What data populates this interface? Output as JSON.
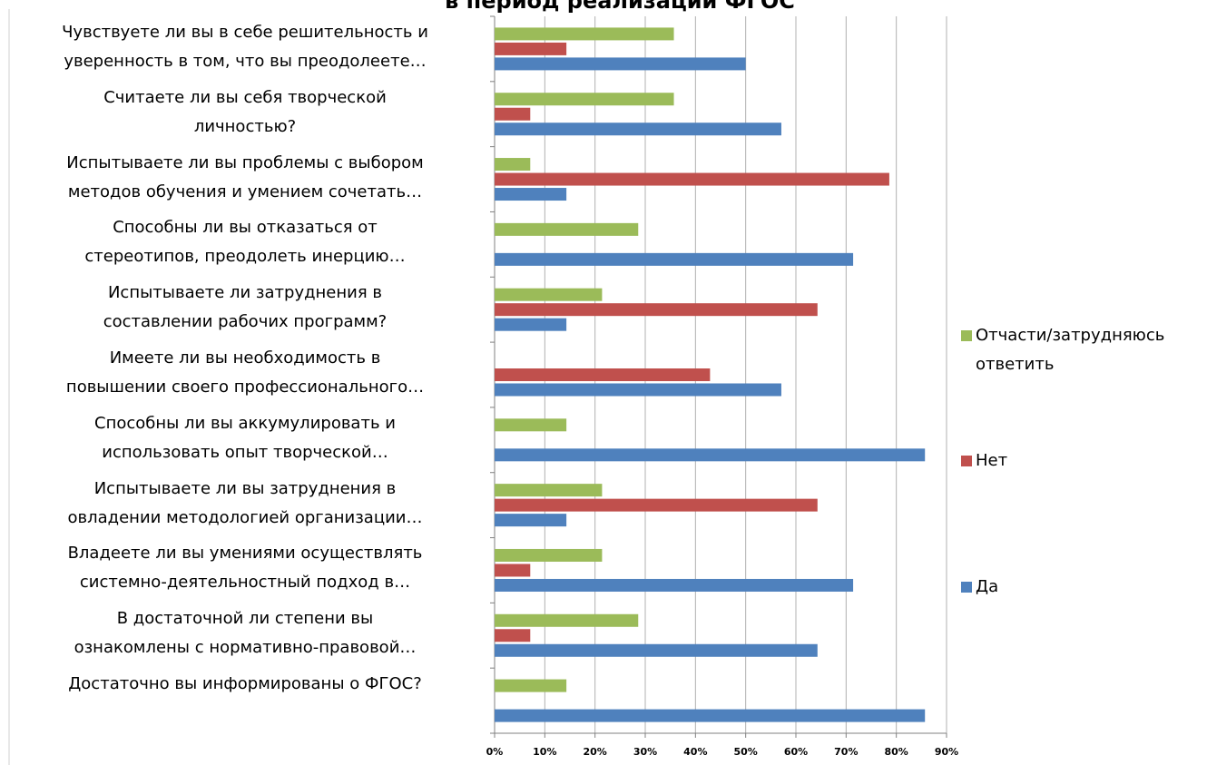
{
  "chart_data": {
    "type": "bar",
    "orientation": "horizontal",
    "title": "в период реализации  ФГОС",
    "categories": [
      "Чувствуете ли вы в себе решительность и\nуверенность в том, что вы преодолеете…",
      "Считаете ли вы себя творческой\nличностью?",
      "Испытываете ли вы проблемы с выбором\nметодов обучения и умением сочетать…",
      "Способны ли вы отказаться от\nстереотипов, преодолеть инерцию…",
      "Испытываете ли затруднения в\nсоставлении рабочих программ?",
      "Имеете ли вы необходимость в\nповышении своего профессионального…",
      "Способны ли вы аккумулировать и\nиспользовать опыт творческой…",
      "Испытываете ли вы затруднения в\nовладении методологией организации…",
      "Владеете ли вы умениями осуществлять\nсистемно-деятельностный подход в…",
      "В достаточной ли степени вы\nознакомлены с нормативно-правовой…",
      "Достаточно вы информированы о ФГОС?"
    ],
    "series": [
      {
        "name": "Да",
        "color": "#4f81bd",
        "values": [
          50,
          57.1,
          14.3,
          71.4,
          14.3,
          57.1,
          85.7,
          14.3,
          71.4,
          64.3,
          85.7
        ]
      },
      {
        "name": "Нет",
        "color": "#c0504d",
        "values": [
          14.3,
          7.1,
          78.6,
          0,
          64.3,
          42.9,
          0,
          64.3,
          7.1,
          7.1,
          0
        ]
      },
      {
        "name": "Отчасти/затрудняюсь ответить",
        "color": "#9bbb59",
        "values": [
          35.7,
          35.7,
          7.1,
          28.6,
          21.4,
          0,
          14.3,
          21.4,
          21.4,
          28.6,
          14.3
        ]
      }
    ],
    "xlim": [
      0,
      90
    ],
    "xticks": [
      {
        "value": 0,
        "label": "0%"
      },
      {
        "value": 10,
        "label": "10%"
      },
      {
        "value": 20,
        "label": "20%"
      },
      {
        "value": 30,
        "label": "30%"
      },
      {
        "value": 40,
        "label": "40%"
      },
      {
        "value": 50,
        "label": "50%"
      },
      {
        "value": 60,
        "label": "60%"
      },
      {
        "value": 70,
        "label": "70%"
      },
      {
        "value": 80,
        "label": "80%"
      },
      {
        "value": 90,
        "label": "90%"
      }
    ],
    "grid": true,
    "legend": "right"
  }
}
